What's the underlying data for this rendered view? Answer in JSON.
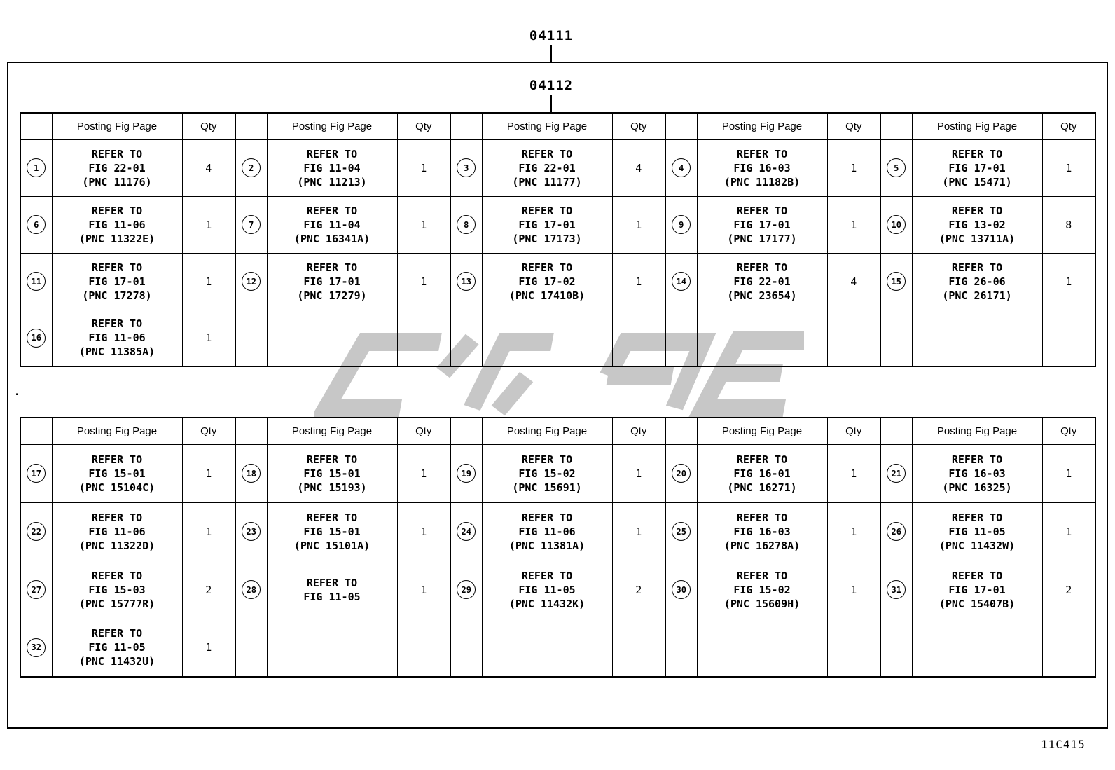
{
  "page": {
    "top_label": "04111",
    "inner_label": "04112",
    "footer_code": "11C415",
    "stray_mark": "."
  },
  "table_header": {
    "posting": "Posting Fig Page",
    "qty": "Qty"
  },
  "tables": [
    {
      "rows": [
        [
          {
            "num": "1",
            "lines": [
              "REFER TO",
              "FIG 22-01",
              "(PNC 11176)"
            ],
            "qty": "4"
          },
          {
            "num": "2",
            "lines": [
              "REFER TO",
              "FIG 11-04",
              "(PNC 11213)"
            ],
            "qty": "1"
          },
          {
            "num": "3",
            "lines": [
              "REFER TO",
              "FIG 22-01",
              "(PNC 11177)"
            ],
            "qty": "4"
          },
          {
            "num": "4",
            "lines": [
              "REFER TO",
              "FIG 16-03",
              "(PNC 11182B)"
            ],
            "qty": "1"
          },
          {
            "num": "5",
            "lines": [
              "REFER TO",
              "FIG 17-01",
              "(PNC 15471)"
            ],
            "qty": "1"
          }
        ],
        [
          {
            "num": "6",
            "lines": [
              "REFER TO",
              "FIG 11-06",
              "(PNC 11322E)"
            ],
            "qty": "1"
          },
          {
            "num": "7",
            "lines": [
              "REFER TO",
              "FIG 11-04",
              "(PNC 16341A)"
            ],
            "qty": "1"
          },
          {
            "num": "8",
            "lines": [
              "REFER TO",
              "FIG 17-01",
              "(PNC 17173)"
            ],
            "qty": "1"
          },
          {
            "num": "9",
            "lines": [
              "REFER TO",
              "FIG 17-01",
              "(PNC 17177)"
            ],
            "qty": "1"
          },
          {
            "num": "10",
            "lines": [
              "REFER TO",
              "FIG 13-02",
              "(PNC 13711A)"
            ],
            "qty": "8"
          }
        ],
        [
          {
            "num": "11",
            "lines": [
              "REFER TO",
              "FIG 17-01",
              "(PNC 17278)"
            ],
            "qty": "1"
          },
          {
            "num": "12",
            "lines": [
              "REFER TO",
              "FIG 17-01",
              "(PNC 17279)"
            ],
            "qty": "1"
          },
          {
            "num": "13",
            "lines": [
              "REFER TO",
              "FIG 17-02",
              "(PNC 17410B)"
            ],
            "qty": "1"
          },
          {
            "num": "14",
            "lines": [
              "REFER TO",
              "FIG 22-01",
              "(PNC 23654)"
            ],
            "qty": "4"
          },
          {
            "num": "15",
            "lines": [
              "REFER TO",
              "FIG 26-06",
              "(PNC 26171)"
            ],
            "qty": "1"
          }
        ],
        [
          {
            "num": "16",
            "lines": [
              "REFER TO",
              "FIG 11-06",
              "(PNC 11385A)"
            ],
            "qty": "1"
          },
          null,
          null,
          null,
          null
        ]
      ]
    },
    {
      "rows": [
        [
          {
            "num": "17",
            "lines": [
              "REFER TO",
              "FIG 15-01",
              "(PNC 15104C)"
            ],
            "qty": "1"
          },
          {
            "num": "18",
            "lines": [
              "REFER TO",
              "FIG 15-01",
              "(PNC 15193)"
            ],
            "qty": "1"
          },
          {
            "num": "19",
            "lines": [
              "REFER TO",
              "FIG 15-02",
              "(PNC 15691)"
            ],
            "qty": "1"
          },
          {
            "num": "20",
            "lines": [
              "REFER TO",
              "FIG 16-01",
              "(PNC 16271)"
            ],
            "qty": "1"
          },
          {
            "num": "21",
            "lines": [
              "REFER TO",
              "FIG 16-03",
              "(PNC 16325)"
            ],
            "qty": "1"
          }
        ],
        [
          {
            "num": "22",
            "lines": [
              "REFER TO",
              "FIG 11-06",
              "(PNC 11322D)"
            ],
            "qty": "1"
          },
          {
            "num": "23",
            "lines": [
              "REFER TO",
              "FIG 15-01",
              "(PNC 15101A)"
            ],
            "qty": "1"
          },
          {
            "num": "24",
            "lines": [
              "REFER TO",
              "FIG 11-06",
              "(PNC 11381A)"
            ],
            "qty": "1"
          },
          {
            "num": "25",
            "lines": [
              "REFER TO",
              "FIG 16-03",
              "(PNC 16278A)"
            ],
            "qty": "1"
          },
          {
            "num": "26",
            "lines": [
              "REFER TO",
              "FIG 11-05",
              "(PNC 11432W)"
            ],
            "qty": "1"
          }
        ],
        [
          {
            "num": "27",
            "lines": [
              "REFER TO",
              "FIG 15-03",
              "(PNC 15777R)"
            ],
            "qty": "2"
          },
          {
            "num": "28",
            "lines": [
              "REFER TO",
              "FIG 11-05"
            ],
            "qty": "1"
          },
          {
            "num": "29",
            "lines": [
              "REFER TO",
              "FIG 11-05",
              "(PNC 11432K)"
            ],
            "qty": "2"
          },
          {
            "num": "30",
            "lines": [
              "REFER TO",
              "FIG 15-02",
              "(PNC 15609H)"
            ],
            "qty": "1"
          },
          {
            "num": "31",
            "lines": [
              "REFER TO",
              "FIG 17-01",
              "(PNC 15407B)"
            ],
            "qty": "2"
          }
        ],
        [
          {
            "num": "32",
            "lines": [
              "REFER TO",
              "FIG 11-05",
              "(PNC 11432U)"
            ],
            "qty": "1"
          },
          null,
          null,
          null,
          null
        ]
      ]
    }
  ],
  "watermark_color": "#c7c7c7"
}
